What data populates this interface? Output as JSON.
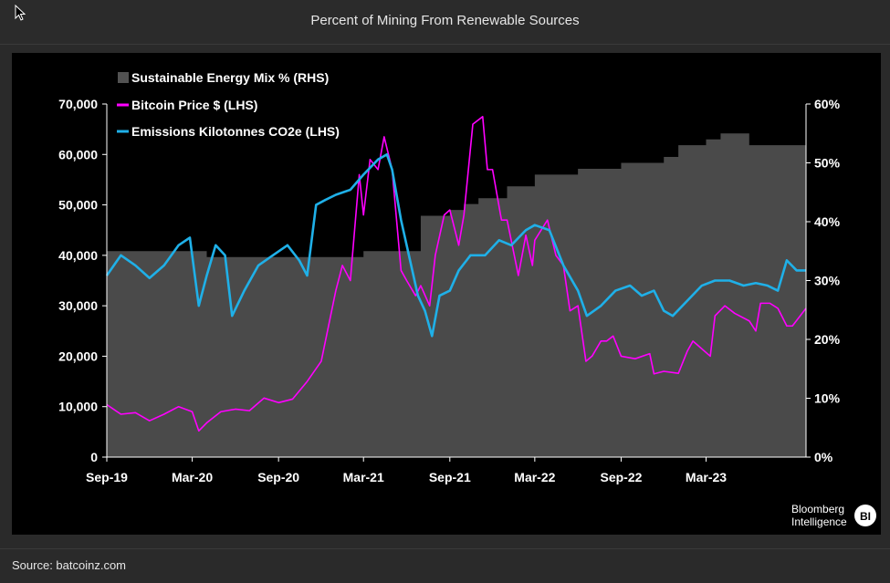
{
  "title": "Percent of Mining From Renewable Sources",
  "source": "Source: batcoinz.com",
  "branding": {
    "line1": "Bloomberg",
    "line2": "Intelligence",
    "badge": "BI"
  },
  "colors": {
    "background": "#000000",
    "area": "#4a4a4a",
    "area_top": "#525252",
    "bitcoin": "#ff00ff",
    "emissions": "#1fb0e8",
    "text": "#ffffff"
  },
  "chart_data": {
    "type": "line",
    "legend_position": "top-left",
    "grid": false,
    "x_tick_labels": [
      "Sep-19",
      "Mar-20",
      "Sep-20",
      "Mar-21",
      "Sep-21",
      "Mar-22",
      "Sep-22",
      "Mar-23"
    ],
    "x_tick_dates": [
      "2019-09-01",
      "2020-03-01",
      "2020-09-01",
      "2021-03-01",
      "2021-09-01",
      "2022-03-01",
      "2022-09-01",
      "2023-03-01"
    ],
    "x_range": [
      "2019-09-01",
      "2023-09-30"
    ],
    "y_left": {
      "range": [
        0,
        70000
      ],
      "tick_labels": [
        "0",
        "10,000",
        "20,000",
        "30,000",
        "40,000",
        "50,000",
        "60,000",
        "70,000"
      ]
    },
    "y_right": {
      "range": [
        0,
        60
      ],
      "tick_labels": [
        "0%",
        "10%",
        "20%",
        "30%",
        "40%",
        "50%",
        "60%"
      ]
    },
    "series": [
      {
        "name": "Sustainable Energy Mix % (RHS)",
        "kind": "area",
        "axis": "right",
        "points": [
          [
            "2019-09-01",
            35
          ],
          [
            "2020-03-01",
            35
          ],
          [
            "2020-04-01",
            34
          ],
          [
            "2020-06-01",
            34
          ],
          [
            "2020-09-01",
            34
          ],
          [
            "2020-12-01",
            34
          ],
          [
            "2021-03-01",
            35
          ],
          [
            "2021-06-01",
            35
          ],
          [
            "2021-07-01",
            41
          ],
          [
            "2021-09-01",
            42
          ],
          [
            "2021-10-01",
            43
          ],
          [
            "2021-11-01",
            44
          ],
          [
            "2022-01-01",
            46
          ],
          [
            "2022-03-01",
            48
          ],
          [
            "2022-06-01",
            49
          ],
          [
            "2022-09-01",
            50
          ],
          [
            "2022-12-01",
            51
          ],
          [
            "2023-01-01",
            53
          ],
          [
            "2023-03-01",
            54
          ],
          [
            "2023-04-01",
            55
          ],
          [
            "2023-06-01",
            53
          ],
          [
            "2023-09-30",
            53
          ]
        ]
      },
      {
        "name": "Bitcoin Price $ (LHS)",
        "kind": "line",
        "axis": "left",
        "points": [
          [
            "2019-09-01",
            10400
          ],
          [
            "2019-10-01",
            8500
          ],
          [
            "2019-11-01",
            8800
          ],
          [
            "2019-12-01",
            7200
          ],
          [
            "2020-01-01",
            8500
          ],
          [
            "2020-02-01",
            10000
          ],
          [
            "2020-03-01",
            9000
          ],
          [
            "2020-03-15",
            5200
          ],
          [
            "2020-04-01",
            6800
          ],
          [
            "2020-05-01",
            9000
          ],
          [
            "2020-06-01",
            9500
          ],
          [
            "2020-07-01",
            9200
          ],
          [
            "2020-08-01",
            11700
          ],
          [
            "2020-09-01",
            10800
          ],
          [
            "2020-10-01",
            11500
          ],
          [
            "2020-11-01",
            15000
          ],
          [
            "2020-12-01",
            19000
          ],
          [
            "2021-01-01",
            33000
          ],
          [
            "2021-01-15",
            38000
          ],
          [
            "2021-02-01",
            35000
          ],
          [
            "2021-02-20",
            56000
          ],
          [
            "2021-03-01",
            48000
          ],
          [
            "2021-03-15",
            59000
          ],
          [
            "2021-04-01",
            57000
          ],
          [
            "2021-04-14",
            63500
          ],
          [
            "2021-05-01",
            57000
          ],
          [
            "2021-05-20",
            37000
          ],
          [
            "2021-06-01",
            35000
          ],
          [
            "2021-06-20",
            32000
          ],
          [
            "2021-07-01",
            34000
          ],
          [
            "2021-07-20",
            30000
          ],
          [
            "2021-08-01",
            40000
          ],
          [
            "2021-08-20",
            48000
          ],
          [
            "2021-09-01",
            49000
          ],
          [
            "2021-09-20",
            42000
          ],
          [
            "2021-10-01",
            48000
          ],
          [
            "2021-10-20",
            66000
          ],
          [
            "2021-11-10",
            67500
          ],
          [
            "2021-11-20",
            57000
          ],
          [
            "2021-12-01",
            57000
          ],
          [
            "2021-12-20",
            47000
          ],
          [
            "2022-01-01",
            47000
          ],
          [
            "2022-01-25",
            36000
          ],
          [
            "2022-02-10",
            44000
          ],
          [
            "2022-02-24",
            38000
          ],
          [
            "2022-03-01",
            43000
          ],
          [
            "2022-03-28",
            47000
          ],
          [
            "2022-04-15",
            40000
          ],
          [
            "2022-05-01",
            38000
          ],
          [
            "2022-05-15",
            29000
          ],
          [
            "2022-06-01",
            30000
          ],
          [
            "2022-06-18",
            19000
          ],
          [
            "2022-07-01",
            20000
          ],
          [
            "2022-07-20",
            23000
          ],
          [
            "2022-08-01",
            23000
          ],
          [
            "2022-08-15",
            24000
          ],
          [
            "2022-09-01",
            20000
          ],
          [
            "2022-10-01",
            19500
          ],
          [
            "2022-11-01",
            20500
          ],
          [
            "2022-11-10",
            16500
          ],
          [
            "2022-12-01",
            17000
          ],
          [
            "2023-01-01",
            16600
          ],
          [
            "2023-01-20",
            21000
          ],
          [
            "2023-02-01",
            23000
          ],
          [
            "2023-03-10",
            20000
          ],
          [
            "2023-03-20",
            28000
          ],
          [
            "2023-04-10",
            30000
          ],
          [
            "2023-05-01",
            28500
          ],
          [
            "2023-06-01",
            27000
          ],
          [
            "2023-06-15",
            25000
          ],
          [
            "2023-06-25",
            30500
          ],
          [
            "2023-07-15",
            30500
          ],
          [
            "2023-08-01",
            29500
          ],
          [
            "2023-08-20",
            26000
          ],
          [
            "2023-09-01",
            26000
          ],
          [
            "2023-09-30",
            29500
          ]
        ]
      },
      {
        "name": "Emissions Kilotonnes CO2e (LHS)",
        "kind": "line",
        "axis": "left",
        "points": [
          [
            "2019-09-01",
            36000
          ],
          [
            "2019-10-01",
            40000
          ],
          [
            "2019-11-01",
            38000
          ],
          [
            "2019-12-01",
            35500
          ],
          [
            "2020-01-01",
            38000
          ],
          [
            "2020-02-01",
            42000
          ],
          [
            "2020-02-25",
            43500
          ],
          [
            "2020-03-15",
            30000
          ],
          [
            "2020-04-01",
            36000
          ],
          [
            "2020-04-20",
            42000
          ],
          [
            "2020-05-10",
            40000
          ],
          [
            "2020-05-25",
            28000
          ],
          [
            "2020-06-20",
            33000
          ],
          [
            "2020-07-20",
            38000
          ],
          [
            "2020-08-20",
            40000
          ],
          [
            "2020-09-20",
            42000
          ],
          [
            "2020-10-15",
            39000
          ],
          [
            "2020-11-01",
            36000
          ],
          [
            "2020-11-20",
            50000
          ],
          [
            "2020-12-10",
            51000
          ],
          [
            "2021-01-01",
            52000
          ],
          [
            "2021-02-01",
            53000
          ],
          [
            "2021-03-01",
            56000
          ],
          [
            "2021-04-01",
            59000
          ],
          [
            "2021-04-20",
            60000
          ],
          [
            "2021-05-01",
            57000
          ],
          [
            "2021-05-20",
            47000
          ],
          [
            "2021-06-01",
            42000
          ],
          [
            "2021-06-25",
            32000
          ],
          [
            "2021-07-10",
            29000
          ],
          [
            "2021-07-25",
            24000
          ],
          [
            "2021-08-10",
            32000
          ],
          [
            "2021-09-01",
            33000
          ],
          [
            "2021-09-20",
            37000
          ],
          [
            "2021-10-15",
            40000
          ],
          [
            "2021-11-15",
            40000
          ],
          [
            "2021-12-15",
            43000
          ],
          [
            "2022-01-10",
            42000
          ],
          [
            "2022-02-10",
            45000
          ],
          [
            "2022-03-01",
            46000
          ],
          [
            "2022-04-01",
            45000
          ],
          [
            "2022-05-01",
            38000
          ],
          [
            "2022-06-01",
            33000
          ],
          [
            "2022-06-20",
            28000
          ],
          [
            "2022-07-20",
            30000
          ],
          [
            "2022-08-20",
            33000
          ],
          [
            "2022-09-20",
            34000
          ],
          [
            "2022-10-15",
            32000
          ],
          [
            "2022-11-10",
            33000
          ],
          [
            "2022-12-01",
            29000
          ],
          [
            "2022-12-20",
            28000
          ],
          [
            "2023-01-20",
            31000
          ],
          [
            "2023-02-20",
            34000
          ],
          [
            "2023-03-20",
            35000
          ],
          [
            "2023-04-20",
            35000
          ],
          [
            "2023-05-20",
            34000
          ],
          [
            "2023-06-15",
            34500
          ],
          [
            "2023-07-10",
            34000
          ],
          [
            "2023-08-01",
            33000
          ],
          [
            "2023-08-20",
            39000
          ],
          [
            "2023-09-10",
            37000
          ],
          [
            "2023-09-30",
            37000
          ]
        ]
      }
    ]
  }
}
